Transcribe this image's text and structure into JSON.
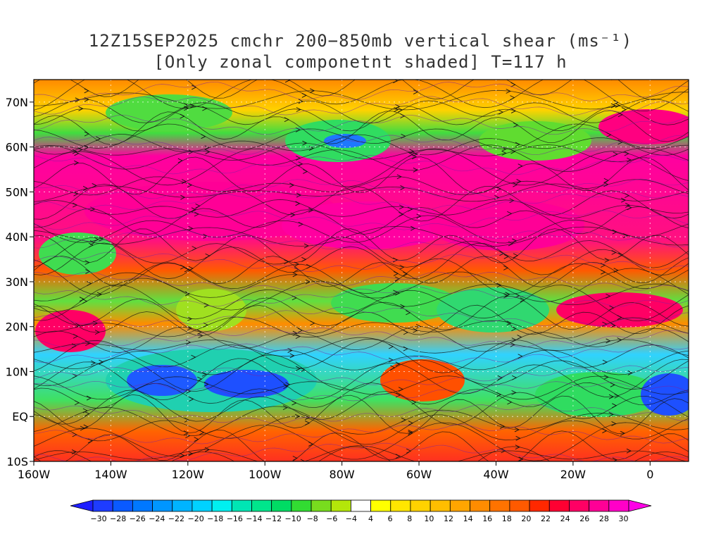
{
  "title": {
    "line1": "12Z15SEP2025 cmchr 200−850mb vertical shear (ms⁻¹)",
    "line2": "[Only zonal componetnt shaded] T=117 h"
  },
  "map": {
    "lon_range": [
      -160,
      10
    ],
    "lat_range": [
      -10,
      75
    ],
    "lat_ticks": [
      {
        "value": 70,
        "label": "70N"
      },
      {
        "value": 60,
        "label": "60N"
      },
      {
        "value": 50,
        "label": "50N"
      },
      {
        "value": 40,
        "label": "40N"
      },
      {
        "value": 30,
        "label": "30N"
      },
      {
        "value": 20,
        "label": "20N"
      },
      {
        "value": 10,
        "label": "10N"
      },
      {
        "value": 0,
        "label": "EQ"
      },
      {
        "value": -10,
        "label": "10S"
      }
    ],
    "lon_ticks": [
      {
        "value": -160,
        "label": "160W"
      },
      {
        "value": -140,
        "label": "140W"
      },
      {
        "value": -120,
        "label": "120W"
      },
      {
        "value": -100,
        "label": "100W"
      },
      {
        "value": -80,
        "label": "80W"
      },
      {
        "value": -60,
        "label": "60W"
      },
      {
        "value": -40,
        "label": "40W"
      },
      {
        "value": -20,
        "label": "20W"
      },
      {
        "value": 0,
        "label": "0"
      }
    ]
  },
  "colorbar": {
    "labels": [
      "−30",
      "−28",
      "−26",
      "−24",
      "−22",
      "−20",
      "−18",
      "−16",
      "−14",
      "−12",
      "−10",
      "−8",
      "−6",
      "−4",
      "4",
      "6",
      "8",
      "10",
      "12",
      "14",
      "16",
      "18",
      "20",
      "22",
      "24",
      "26",
      "28",
      "30"
    ],
    "colors": [
      "#1e3cff",
      "#0a5aff",
      "#0078ff",
      "#0096ff",
      "#00b4ff",
      "#00d2ff",
      "#00f0f0",
      "#00e6b4",
      "#00e68c",
      "#00dc64",
      "#32dc32",
      "#78dc1e",
      "#b4e60a",
      "#ffffff",
      "#ffff00",
      "#ffe600",
      "#ffd200",
      "#ffbe00",
      "#ffa500",
      "#ff8c00",
      "#ff7300",
      "#ff5a00",
      "#ff2800",
      "#ff0032",
      "#ff0064",
      "#ff0096",
      "#ff00c8"
    ]
  }
}
